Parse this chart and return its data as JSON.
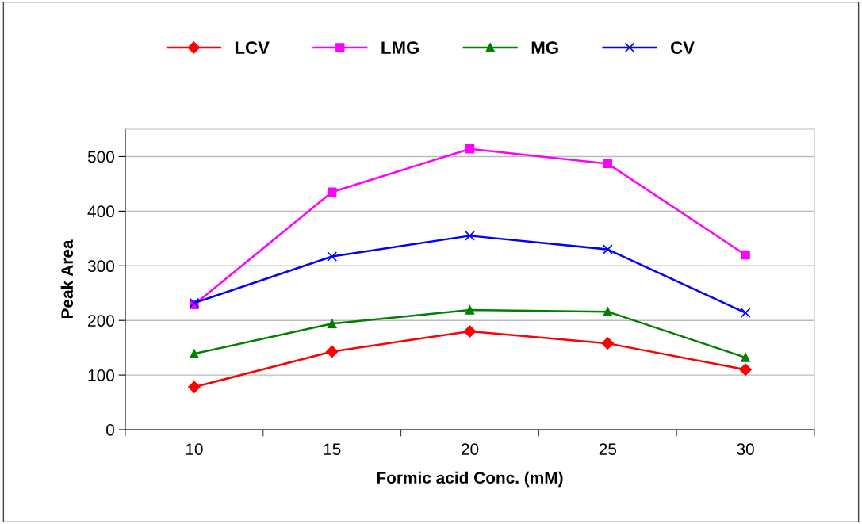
{
  "chart_data": {
    "type": "line",
    "xlabel": "Formic acid Conc. (mM)",
    "ylabel": "Peak Area",
    "categories": [
      "10",
      "15",
      "20",
      "25",
      "30"
    ],
    "series": [
      {
        "name": "LCV",
        "color": "#ff0000",
        "marker": "diamond",
        "values": [
          78,
          143,
          180,
          158,
          110
        ]
      },
      {
        "name": "LMG",
        "color": "#ff00ff",
        "marker": "square",
        "values": [
          229,
          435,
          514,
          487,
          320
        ]
      },
      {
        "name": "MG",
        "color": "#008000",
        "marker": "triangle",
        "values": [
          139,
          194,
          219,
          216,
          132
        ]
      },
      {
        "name": "CV",
        "color": "#0000ff",
        "marker": "cross",
        "values": [
          232,
          317,
          355,
          330,
          214
        ]
      }
    ],
    "ylim": [
      0,
      550
    ],
    "yticks": [
      0,
      100,
      200,
      300,
      400,
      500
    ],
    "grid": "y",
    "legend": "top"
  }
}
